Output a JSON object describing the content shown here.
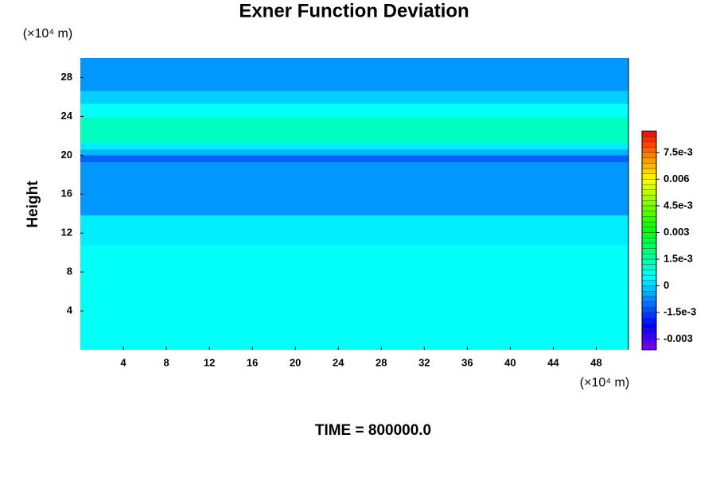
{
  "chart_data": {
    "type": "contour",
    "title": "Exner Function Deviation",
    "ylabel": "Height",
    "yunit": "(×10⁴ m)",
    "xunit": "(×10⁴ m)",
    "footer": "TIME = 800000.0",
    "xlim": [
      0,
      51
    ],
    "xticks": [
      4,
      8,
      12,
      16,
      20,
      24,
      28,
      32,
      36,
      40,
      44,
      48
    ],
    "ylim": [
      0,
      30
    ],
    "yticks": [
      4,
      8,
      12,
      16,
      20,
      24,
      28
    ],
    "y": [
      0,
      10.8,
      13.8,
      19.3,
      20,
      20.6,
      21.3,
      23.9,
      25.3,
      26.6,
      30
    ],
    "values": [
      0.0006,
      0.0003,
      -0.0006,
      -0.0012,
      -0.0003,
      0.0003,
      0.0012,
      0.0006,
      0,
      -0.0006
    ],
    "colormap": "rainbow",
    "clim": [
      -0.0036,
      0.0087
    ],
    "contour_interval": 0.0003,
    "cticks": [
      {
        "value": 0.0075,
        "label": "7.5e-3"
      },
      0.006,
      {
        "value": 0.0045,
        "label": "4.5e-3"
      },
      0.003,
      {
        "value": 0.0015,
        "label": "1.5e-3"
      },
      0,
      {
        "value": -0.0015,
        "label": "-1.5e-3"
      },
      -0.003
    ]
  }
}
